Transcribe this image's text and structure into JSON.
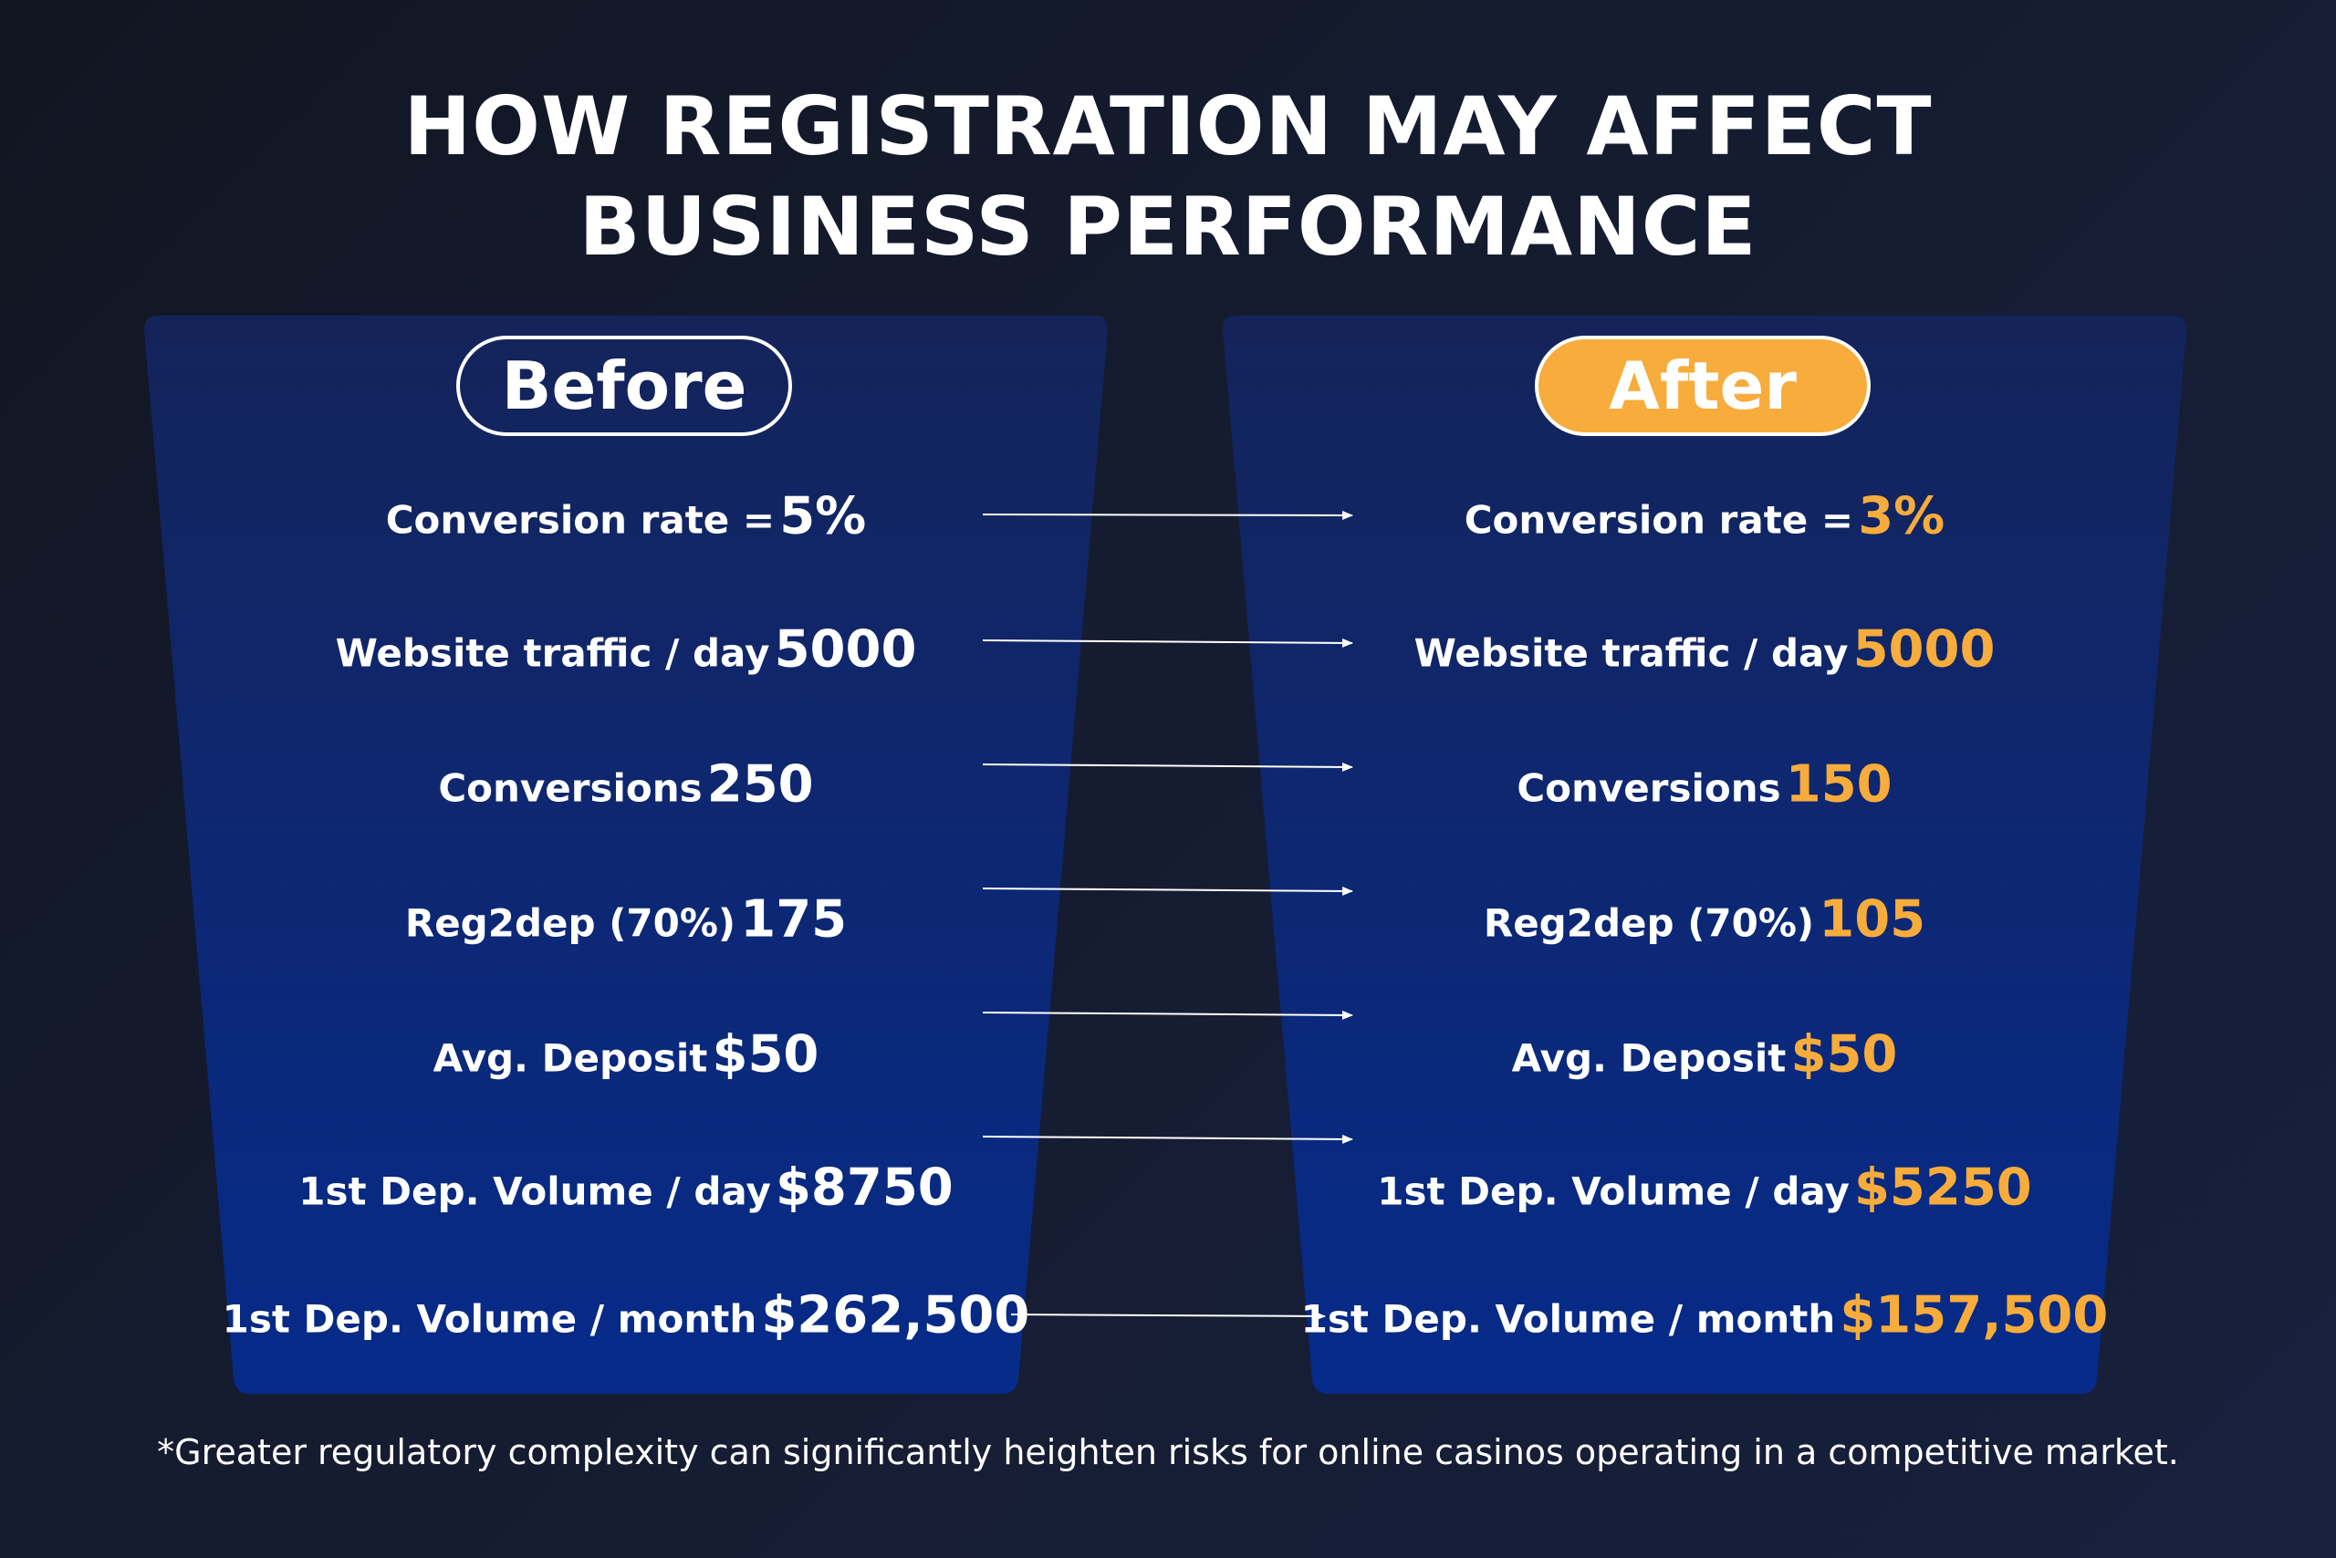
{
  "title": {
    "line1": "HOW REGISTRATION MAY AFFECT",
    "line2": "BUSINESS PERFORMANCE"
  },
  "colors": {
    "accent": "#f7ac3c",
    "panel_top": "#14245a",
    "panel_bottom": "#062b8a",
    "background": "#131a2b"
  },
  "before": {
    "heading": "Before",
    "metrics": [
      {
        "label": "Conversion rate =",
        "value": "5%"
      },
      {
        "label": "Website traffic / day",
        "value": "5000"
      },
      {
        "label": "Conversions",
        "value": "250"
      },
      {
        "label": "Reg2dep (70%)",
        "value": "175"
      },
      {
        "label": "Avg. Deposit",
        "value": "$50"
      },
      {
        "label": "1st Dep. Volume / day",
        "value": "$8750"
      },
      {
        "label": "1st Dep. Volume / month",
        "value": "$262,500"
      }
    ]
  },
  "after": {
    "heading": "After",
    "metrics": [
      {
        "label": "Conversion rate =",
        "value": "3%"
      },
      {
        "label": "Website traffic / day",
        "value": "5000"
      },
      {
        "label": "Conversions",
        "value": "150"
      },
      {
        "label": "Reg2dep (70%)",
        "value": "105"
      },
      {
        "label": "Avg. Deposit",
        "value": "$50"
      },
      {
        "label": "1st Dep. Volume / day",
        "value": "$5250"
      },
      {
        "label": "1st Dep. Volume / month",
        "value": "$157,500"
      }
    ]
  },
  "footnote": "*Greater regulatory complexity can significantly heighten risks for online casinos operating in a competitive market."
}
